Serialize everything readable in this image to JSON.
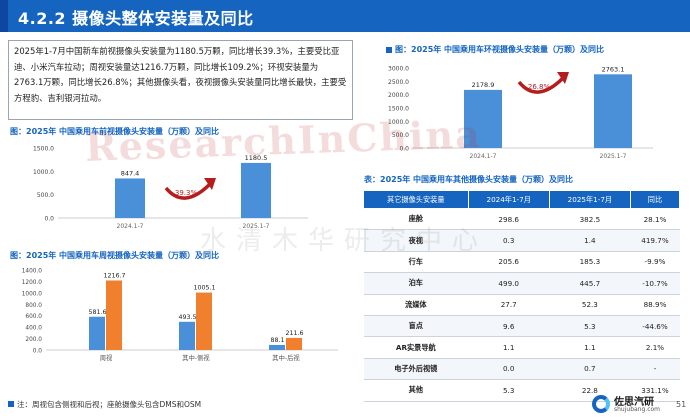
{
  "header": {
    "title": "4.2.2 摄像头整体安装量及同比"
  },
  "summary": {
    "text": "2025年1-7月中国新车前视摄像头安装量为1180.5万颗，同比增长39.3%，主要受比亚迪、小米汽车拉动；周视安装量达1216.7万颗，同比增长109.2%；环视安装量为2763.1万颗，同比增长26.8%；其他摄像头看，夜视摄像头安装量同比增长最快，主要受方程豹、吉利银河拉动。"
  },
  "watermark": {
    "text": "ResearchInChina",
    "cn": "水清木华研究中心"
  },
  "charts": {
    "front": {
      "title": "图：2025年 中国乘用车前视摄像头安装量（万颗）及同比",
      "y_ticks": [
        "1500.0",
        "1000.0",
        "500.0",
        "0.0"
      ],
      "growth": "39.3%"
    },
    "surround": {
      "title": "图：2025年 中国乘用车环视摄像头安装量（万颗）及同比",
      "y_ticks": [
        "3000.0",
        "2500.0",
        "2000.0",
        "1500.0",
        "1000.0",
        "500.0",
        "0.0"
      ],
      "growth": "26.8%"
    },
    "peripheral": {
      "title": "图：2025年 中国乘用车周视摄像头安装量（万颗）及同比",
      "y_ticks": [
        "1400.0",
        "1200.0",
        "1000.0",
        "800.0",
        "600.0",
        "400.0",
        "200.0",
        "0.0"
      ]
    },
    "other_table_title": "表：2025年 中国乘用车其他摄像头安装量（万颗）及同比"
  },
  "chart_data": [
    {
      "type": "bar",
      "title": "图：2025年 中国乘用车前视摄像头安装量（万颗）及同比",
      "categories": [
        "2024.1-7",
        "2025.1-7"
      ],
      "values": [
        847.4,
        1180.5
      ],
      "ylim": [
        0,
        1500
      ],
      "colors": [
        "#4a90d9",
        "#4a90d9"
      ]
    },
    {
      "type": "bar",
      "title": "图：2025年 中国乘用车环视摄像头安装量（万颗）及同比",
      "categories": [
        "2024.1-7",
        "2025.1-7"
      ],
      "values": [
        2178.9,
        2763.1
      ],
      "ylim": [
        0,
        3000
      ],
      "colors": [
        "#4a90d9",
        "#4a90d9"
      ]
    },
    {
      "type": "bar",
      "title": "图：2025年 中国乘用车周视摄像头安装量（万颗）及同比",
      "categories": [
        "周视",
        "其中-侧视",
        "其中-后视"
      ],
      "series": [
        {
          "values": [
            581.6,
            493.5,
            88.1
          ],
          "color": "#4a90d9"
        },
        {
          "values": [
            1216.7,
            1005.1,
            211.6
          ],
          "color": "#f07f2e"
        }
      ],
      "ylim": [
        0,
        1400
      ]
    },
    {
      "type": "table",
      "title": "表：2025年 中国乘用车其他摄像头安装量（万颗）及同比",
      "columns": [
        "其它摄像头安装量",
        "2024年1-7月",
        "2025年1-7月",
        "同比"
      ],
      "rows": [
        [
          "座舱",
          "298.6",
          "382.5",
          "28.1%"
        ],
        [
          "夜视",
          "0.3",
          "1.4",
          "419.7%"
        ],
        [
          "行车",
          "205.6",
          "185.3",
          "-9.9%"
        ],
        [
          "泊车",
          "499.0",
          "445.7",
          "-10.7%"
        ],
        [
          "流媒体",
          "27.7",
          "52.3",
          "88.9%"
        ],
        [
          "盲点",
          "9.6",
          "5.3",
          "-44.6%"
        ],
        [
          "AR实景导航",
          "1.1",
          "1.1",
          "2.1%"
        ],
        [
          "电子外后视镜",
          "0.0",
          "0.7",
          "-"
        ],
        [
          "其他",
          "5.3",
          "22.8",
          "331.1%"
        ]
      ]
    }
  ],
  "footnote": "注：周视包含侧视和后视；座舱摄像头包含DMS和OSM",
  "logo": {
    "name": "佐思汽研",
    "url": "shujubang.com"
  },
  "page_number": "51",
  "colors": {
    "primary": "#1565c0",
    "bar_blue": "#4a90d9",
    "bar_orange": "#f07f2e",
    "arrow_red": "#b71c1c"
  }
}
